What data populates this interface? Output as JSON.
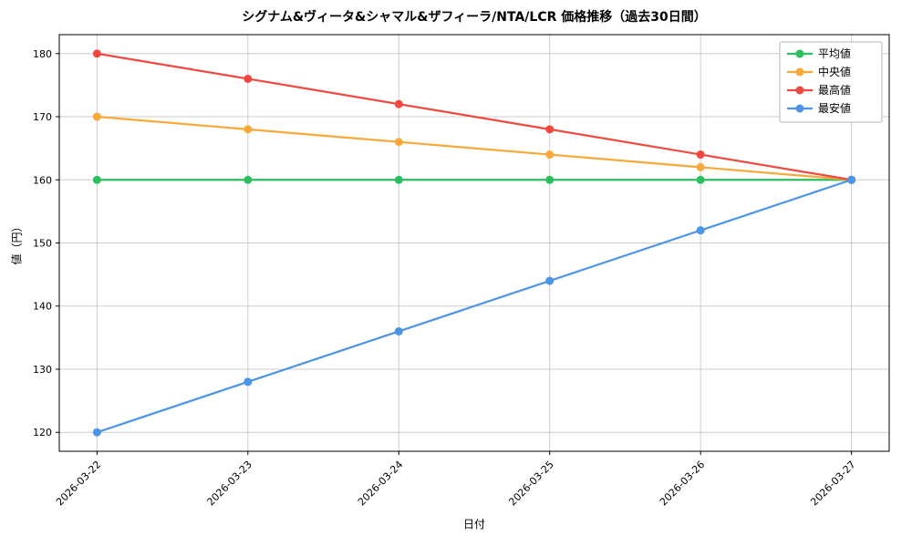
{
  "chart_data": {
    "type": "line",
    "title": "シグナム&ヴィータ&シャマル&ザフィーラ/NTA/LCR 価格推移（過去30日間）",
    "xlabel": "日付",
    "ylabel": "値（円）",
    "categories": [
      "2026-03-22",
      "2026-03-23",
      "2026-03-24",
      "2026-03-25",
      "2026-03-26",
      "2026-03-27"
    ],
    "series": [
      {
        "name": "平均値",
        "color": "#2dbe60",
        "values": [
          160,
          160,
          160,
          160,
          160,
          160
        ]
      },
      {
        "name": "中央値",
        "color": "#f9a93a",
        "values": [
          170,
          168,
          166,
          164,
          162,
          160
        ]
      },
      {
        "name": "最高値",
        "color": "#f0483f",
        "values": [
          180,
          176,
          172,
          168,
          164,
          160
        ]
      },
      {
        "name": "最安値",
        "color": "#4b94e6",
        "values": [
          120,
          128,
          136,
          144,
          152,
          160
        ]
      }
    ],
    "yticks": [
      120,
      130,
      140,
      150,
      160,
      170,
      180
    ],
    "ylim": [
      117,
      183
    ],
    "grid": true,
    "legend_position": "top-right",
    "grid_color": "#cdcdcd",
    "axis_color": "#000000",
    "background_color": "#ffffff"
  }
}
